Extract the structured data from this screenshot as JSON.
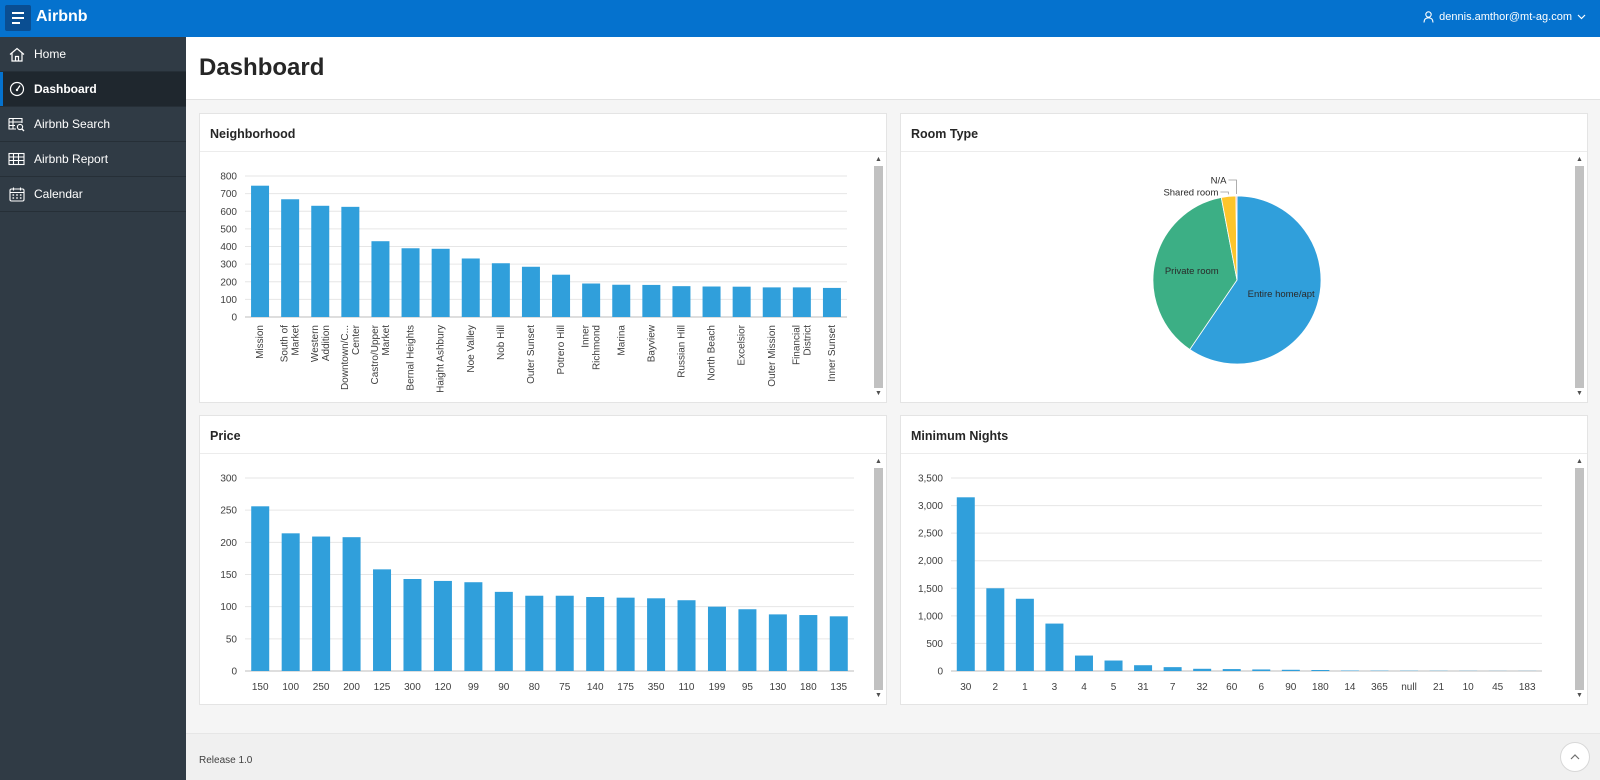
{
  "app": {
    "title": "Airbnb",
    "user": "dennis.amthor@mt-ag.com"
  },
  "sidebar": {
    "items": [
      {
        "label": "Home",
        "icon": "home-icon",
        "active": false
      },
      {
        "label": "Dashboard",
        "icon": "dashboard-gauge-icon",
        "active": true
      },
      {
        "label": "Airbnb Search",
        "icon": "table-search-icon",
        "active": false
      },
      {
        "label": "Airbnb Report",
        "icon": "table-icon",
        "active": false
      },
      {
        "label": "Calendar",
        "icon": "calendar-icon",
        "active": false
      }
    ]
  },
  "page": {
    "title": "Dashboard"
  },
  "regions": {
    "neighborhood": "Neighborhood",
    "room_type": "Room Type",
    "price": "Price",
    "minimum_nights": "Minimum Nights"
  },
  "footer": {
    "release": "Release 1.0"
  },
  "colors": {
    "header": "#0572ce",
    "sidebar": "#303b45",
    "bar": "#309fdb",
    "pie_entire": "#309fdb",
    "pie_private": "#3caf85",
    "pie_shared": "#fdc52b"
  },
  "chart_data": [
    {
      "type": "bar",
      "id": "neighborhood",
      "categories": [
        [
          "Mission"
        ],
        [
          "South of",
          "Market"
        ],
        [
          "Western",
          "Addition"
        ],
        [
          "Downtown/C...",
          "Center"
        ],
        [
          "Castro/Upper",
          "Market"
        ],
        [
          "Bernal Heights"
        ],
        [
          "Haight Ashbury"
        ],
        [
          "Noe Valley"
        ],
        [
          "Nob Hill"
        ],
        [
          "Outer Sunset"
        ],
        [
          "Potrero Hill"
        ],
        [
          "Inner",
          "Richmond"
        ],
        [
          "Marina"
        ],
        [
          "Bayview"
        ],
        [
          "Russian Hill"
        ],
        [
          "North Beach"
        ],
        [
          "Excelsior"
        ],
        [
          "Outer Mission"
        ],
        [
          "Financial",
          "District"
        ],
        [
          "Inner Sunset"
        ]
      ],
      "values": [
        745,
        668,
        631,
        625,
        430,
        390,
        387,
        332,
        305,
        285,
        240,
        190,
        183,
        182,
        175,
        173,
        172,
        168,
        168,
        165
      ],
      "yticks": [
        "800",
        "700",
        "600",
        "500",
        "400",
        "300",
        "200",
        "100",
        "0"
      ],
      "ylim": [
        0,
        800
      ],
      "grid": true
    },
    {
      "type": "pie",
      "id": "room_type",
      "slices": [
        {
          "label": "Entire home/apt",
          "value": 59.5
        },
        {
          "label": "Private room",
          "value": 37.5
        },
        {
          "label": "Shared room",
          "value": 2.8
        },
        {
          "label": "N/A",
          "value": 0.2
        }
      ]
    },
    {
      "type": "bar",
      "id": "price",
      "categories": [
        "150",
        "100",
        "250",
        "200",
        "125",
        "300",
        "120",
        "99",
        "90",
        "80",
        "75",
        "140",
        "175",
        "350",
        "110",
        "199",
        "95",
        "130",
        "180",
        "135"
      ],
      "values": [
        256,
        214,
        209,
        208,
        158,
        143,
        140,
        138,
        123,
        117,
        117,
        115,
        114,
        113,
        110,
        100,
        96,
        88,
        87,
        85
      ],
      "yticks": [
        "300",
        "250",
        "200",
        "150",
        "100",
        "50",
        "0"
      ],
      "ylim": [
        0,
        300
      ],
      "grid": true
    },
    {
      "type": "bar",
      "id": "minimum_nights",
      "categories": [
        "30",
        "2",
        "1",
        "3",
        "4",
        "5",
        "31",
        "7",
        "32",
        "60",
        "6",
        "90",
        "180",
        "14",
        "365",
        "null",
        "21",
        "10",
        "45",
        "183"
      ],
      "values": [
        3150,
        1500,
        1310,
        860,
        280,
        190,
        105,
        70,
        40,
        35,
        28,
        22,
        18,
        8,
        6,
        5,
        4,
        3,
        2,
        2
      ],
      "yticks": [
        "3,500",
        "3,000",
        "2,500",
        "2,000",
        "1,500",
        "1,000",
        "500",
        "0"
      ],
      "ylim": [
        0,
        3500
      ],
      "grid": true
    }
  ]
}
